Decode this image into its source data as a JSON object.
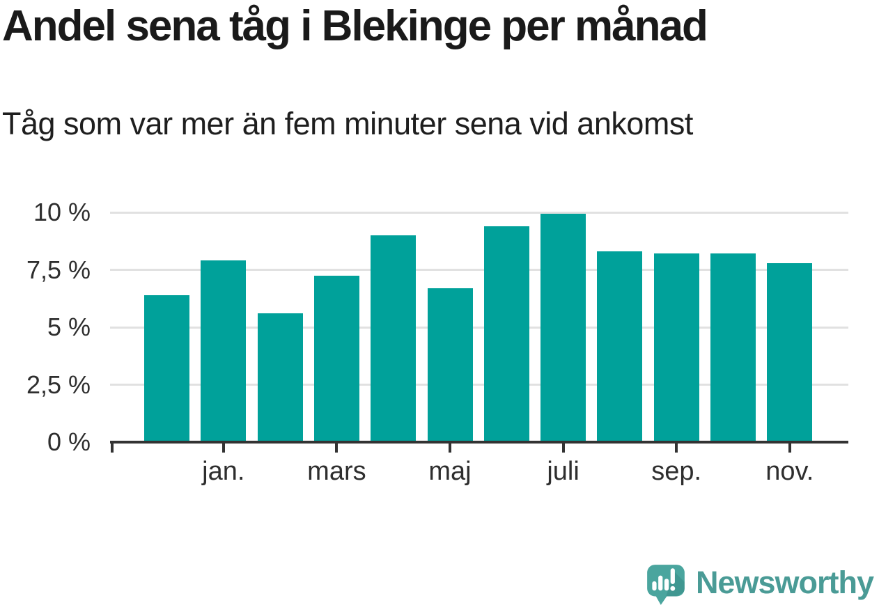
{
  "title": "Andel sena tåg i Blekinge per månad",
  "subtitle": "Tåg som var mer än fem minuter sena vid ankomst",
  "branding": {
    "logo_text": "Newsworthy",
    "logo_icon": "newsworthy-chart-bubble-icon",
    "wordmark_color": "#4a9b96",
    "icon_color": "#4aa59e"
  },
  "colors": {
    "bar": "#00a19a",
    "axis": "#333333",
    "gridline": "#e1e1e1",
    "title_text": "#1a1a1a",
    "axis_label_text": "#2e2e2e"
  },
  "chart_data": {
    "type": "bar",
    "title": "Andel sena tåg i Blekinge per månad",
    "subtitle": "Tåg som var mer än fem minuter sena vid ankomst",
    "unit": "%",
    "n_bars": 12,
    "values": [
      6.4,
      7.9,
      5.6,
      7.25,
      9.0,
      6.7,
      9.4,
      9.95,
      8.3,
      8.2,
      8.2,
      7.8
    ],
    "x_tick_labels": [
      "jan.",
      "mars",
      "maj",
      "juli",
      "sep.",
      "nov."
    ],
    "x_tick_bar_indices": [
      1,
      3,
      5,
      7,
      9,
      11
    ],
    "y_tick_labels": [
      "0 %",
      "2,5 %",
      "5 %",
      "7,5 %",
      "10 %"
    ],
    "y_tick_values": [
      0,
      2.5,
      5,
      7.5,
      10
    ],
    "ylim": [
      0,
      10.45
    ],
    "grid": "horizontal",
    "legend": "none",
    "bar_color": "#00a19a"
  }
}
